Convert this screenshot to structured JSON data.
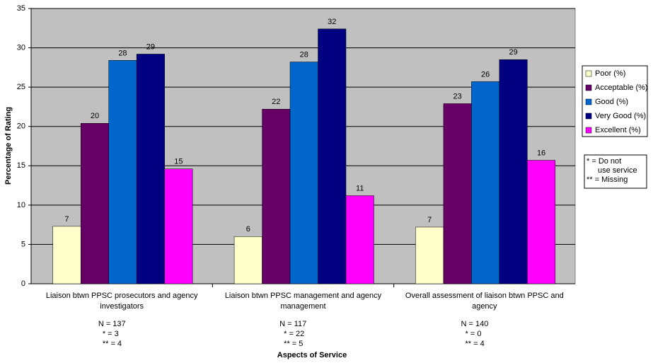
{
  "chart_data": {
    "type": "bar",
    "x_label": "Aspects of Service",
    "y_label": "Percentage of Rating",
    "categories": [
      "Liaison btwn PPSC prosecutors and agency investigators",
      "Liaison btwn PPSC management and agency management",
      "Overall assessment of liaison btwn PPSC and agency"
    ],
    "category_notes": [
      [
        "N = 137",
        "* = 3",
        "** = 4"
      ],
      [
        "N = 117",
        "* = 22",
        "** = 5"
      ],
      [
        "N = 140",
        "* = 0",
        "** = 4"
      ]
    ],
    "series": [
      {
        "name": "Poor (%)",
        "color": "#ffffcc",
        "values": [
          7.3,
          6.0,
          7.2
        ],
        "value_labels": [
          "7",
          "6",
          "7"
        ]
      },
      {
        "name": "Acceptable (%)",
        "color": "#660066",
        "values": [
          20.4,
          22.2,
          22.9
        ],
        "value_labels": [
          "20",
          "22",
          "23"
        ]
      },
      {
        "name": "Good (%)",
        "color": "#0066cc",
        "values": [
          28.4,
          28.2,
          25.7
        ],
        "value_labels": [
          "28",
          "28",
          "26"
        ]
      },
      {
        "name": "Very Good (%)",
        "color": "#000080",
        "values": [
          29.2,
          32.4,
          28.5
        ],
        "value_labels": [
          "29",
          "32",
          "29"
        ]
      },
      {
        "name": "Excellent (%)",
        "color": "#ff00ff",
        "values": [
          14.6,
          11.2,
          15.7
        ],
        "value_labels": [
          "15",
          "11",
          "16"
        ]
      }
    ],
    "ylim": [
      0,
      35
    ],
    "yticks": [
      0,
      5,
      10,
      15,
      20,
      25,
      30,
      35
    ],
    "grid": true,
    "legend": "right",
    "legend_note": [
      "* = Do not",
      "use service",
      "** = Missing"
    ]
  }
}
